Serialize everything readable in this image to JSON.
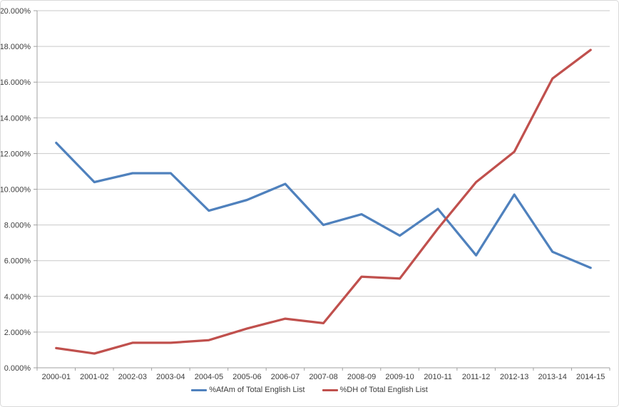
{
  "chart_data": {
    "type": "line",
    "title": "",
    "categories": [
      "2000-01",
      "2001-02",
      "2002-03",
      "2003-04",
      "2004-05",
      "2005-06",
      "2006-07",
      "2007-08",
      "2008-09",
      "2009-10",
      "2010-11",
      "2011-12",
      "2012-13",
      "2013-14",
      "2014-15"
    ],
    "series": [
      {
        "name": "%AfAm of Total English List",
        "color": "#4F81BD",
        "values": [
          12.6,
          10.4,
          10.9,
          10.9,
          8.8,
          9.4,
          10.3,
          8.0,
          8.6,
          7.4,
          8.9,
          6.3,
          9.7,
          6.5,
          5.6
        ]
      },
      {
        "name": "%DH of Total English List",
        "color": "#C0504D",
        "values": [
          1.1,
          0.8,
          1.4,
          1.4,
          1.55,
          2.2,
          2.75,
          2.5,
          5.1,
          5.0,
          7.8,
          10.4,
          12.1,
          16.2,
          17.8
        ]
      }
    ],
    "xlabel": "",
    "ylabel": "",
    "ylim": [
      0,
      20
    ],
    "y_tick_step": 2,
    "y_tick_labels": [
      "0.000%",
      "2.000%",
      "4.000%",
      "6.000%",
      "8.000%",
      "10.000%",
      "12.000%",
      "14.000%",
      "16.000%",
      "18.000%",
      "20.000%"
    ],
    "grid": true,
    "legend_position": "bottom",
    "grid_color": "#c9c9c9",
    "axis_color": "#a0a0a0"
  }
}
